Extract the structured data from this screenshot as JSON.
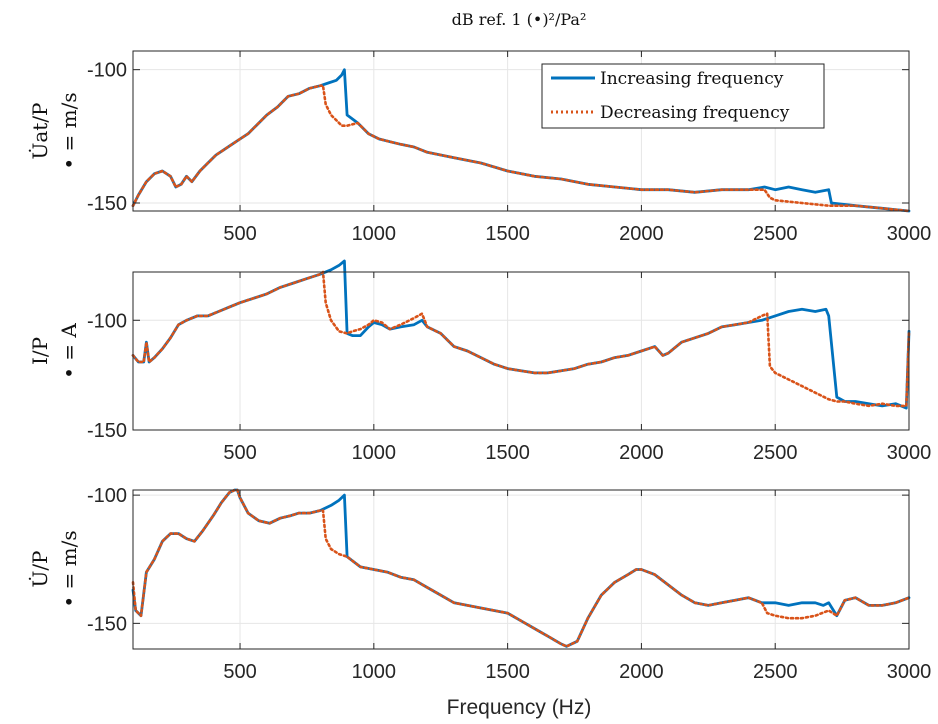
{
  "title": "dB ref. 1 (•)²/Pa²",
  "xlabel": "Frequency (Hz)",
  "chart_data": [
    {
      "type": "line",
      "ylabel_top": "U̇at/P",
      "ylabel_bottom": "• = m/s",
      "xlim": [
        100,
        3000
      ],
      "ylim": [
        -153,
        -93
      ],
      "xticks": [
        500,
        1000,
        1500,
        2000,
        2500,
        3000
      ],
      "yticks": [
        -150,
        -100
      ],
      "ytick_labels": [
        "-150",
        "-100"
      ],
      "legend": [
        "Increasing frequency",
        "Decreasing frequency"
      ],
      "legend_position": "top-right",
      "series": [
        {
          "name": "Increasing frequency",
          "color": "#0072BD",
          "style": "solid",
          "x": [
            100,
            120,
            150,
            180,
            210,
            240,
            260,
            280,
            300,
            320,
            350,
            380,
            410,
            440,
            470,
            500,
            530,
            560,
            600,
            640,
            680,
            720,
            760,
            800,
            830,
            860,
            880,
            890,
            900,
            940,
            980,
            1020,
            1060,
            1100,
            1150,
            1200,
            1300,
            1400,
            1500,
            1600,
            1700,
            1800,
            1900,
            2000,
            2100,
            2200,
            2300,
            2400,
            2460,
            2500,
            2550,
            2600,
            2650,
            2700,
            2710,
            2800,
            2900,
            3000
          ],
          "y": [
            -151,
            -147,
            -142,
            -139,
            -138,
            -140,
            -144,
            -143,
            -140,
            -142,
            -138,
            -135,
            -132,
            -130,
            -128,
            -126,
            -124,
            -121,
            -117,
            -114,
            -110,
            -109,
            -107,
            -106,
            -105,
            -104,
            -102,
            -100,
            -117,
            -120,
            -124,
            -126,
            -127,
            -128,
            -129,
            -131,
            -133,
            -135,
            -138,
            -140,
            -141,
            -143,
            -144,
            -145,
            -145,
            -146,
            -145,
            -145,
            -144,
            -145,
            -144,
            -145,
            -146,
            -145,
            -150,
            -151,
            -152,
            -153
          ]
        },
        {
          "name": "Decreasing frequency",
          "color": "#D95319",
          "style": "dotted",
          "x": [
            100,
            120,
            150,
            180,
            210,
            240,
            260,
            280,
            300,
            320,
            350,
            380,
            410,
            440,
            470,
            500,
            530,
            560,
            600,
            640,
            680,
            720,
            760,
            800,
            810,
            820,
            840,
            860,
            880,
            900,
            940,
            980,
            1020,
            1060,
            1100,
            1150,
            1200,
            1300,
            1400,
            1500,
            1600,
            1700,
            1800,
            1900,
            2000,
            2100,
            2200,
            2300,
            2400,
            2460,
            2480,
            2500,
            2600,
            2700,
            2800,
            2900,
            3000
          ],
          "y": [
            -151,
            -147,
            -142,
            -139,
            -138,
            -140,
            -144,
            -143,
            -140,
            -142,
            -138,
            -135,
            -132,
            -130,
            -128,
            -126,
            -124,
            -121,
            -117,
            -114,
            -110,
            -109,
            -107,
            -106,
            -106,
            -113,
            -117,
            -119,
            -121,
            -121,
            -120,
            -124,
            -126,
            -127,
            -128,
            -129,
            -131,
            -133,
            -135,
            -138,
            -140,
            -141,
            -143,
            -144,
            -145,
            -145,
            -146,
            -145,
            -145,
            -145,
            -148,
            -149,
            -150,
            -151,
            -151,
            -152,
            -153
          ]
        }
      ]
    },
    {
      "type": "line",
      "ylabel_top": "I/P",
      "ylabel_bottom": "• = A",
      "xlim": [
        100,
        3000
      ],
      "ylim": [
        -150,
        -78
      ],
      "xticks": [
        500,
        1000,
        1500,
        2000,
        2500,
        3000
      ],
      "yticks": [
        -150,
        -100
      ],
      "ytick_labels": [
        "-150",
        "-100"
      ],
      "series": [
        {
          "name": "Increasing frequency",
          "color": "#0072BD",
          "style": "solid",
          "x": [
            100,
            120,
            140,
            150,
            160,
            180,
            210,
            240,
            270,
            300,
            340,
            380,
            420,
            460,
            500,
            550,
            600,
            650,
            700,
            750,
            800,
            840,
            870,
            890,
            900,
            920,
            950,
            980,
            1000,
            1030,
            1060,
            1100,
            1150,
            1180,
            1200,
            1250,
            1300,
            1350,
            1400,
            1450,
            1500,
            1550,
            1600,
            1650,
            1700,
            1750,
            1800,
            1850,
            1900,
            1950,
            2000,
            2050,
            2080,
            2100,
            2150,
            2200,
            2250,
            2300,
            2350,
            2400,
            2450,
            2500,
            2550,
            2600,
            2650,
            2690,
            2700,
            2730,
            2760,
            2800,
            2850,
            2900,
            2950,
            2990,
            3000
          ],
          "y": [
            -116,
            -119,
            -119,
            -110,
            -119,
            -117,
            -113,
            -108,
            -102,
            -100,
            -98,
            -98,
            -96,
            -94,
            -92,
            -90,
            -88,
            -85,
            -83,
            -81,
            -79,
            -77,
            -75,
            -73,
            -106,
            -107,
            -107,
            -103,
            -101,
            -102,
            -104,
            -103,
            -102,
            -100,
            -103,
            -106,
            -112,
            -114,
            -117,
            -120,
            -122,
            -123,
            -124,
            -124,
            -123,
            -122,
            -120,
            -119,
            -117,
            -116,
            -114,
            -112,
            -116,
            -115,
            -110,
            -108,
            -106,
            -103,
            -102,
            -101,
            -100,
            -98,
            -96,
            -95,
            -96,
            -95,
            -98,
            -135,
            -137,
            -137,
            -138,
            -139,
            -138,
            -140,
            -105
          ]
        },
        {
          "name": "Decreasing frequency",
          "color": "#D95319",
          "style": "dotted",
          "x": [
            100,
            120,
            140,
            150,
            160,
            180,
            210,
            240,
            270,
            300,
            340,
            380,
            420,
            460,
            500,
            550,
            600,
            650,
            700,
            750,
            800,
            810,
            820,
            840,
            870,
            900,
            920,
            950,
            980,
            1000,
            1030,
            1060,
            1100,
            1150,
            1180,
            1200,
            1250,
            1300,
            1350,
            1400,
            1450,
            1500,
            1550,
            1600,
            1650,
            1700,
            1750,
            1800,
            1850,
            1900,
            1950,
            2000,
            2050,
            2080,
            2100,
            2150,
            2200,
            2250,
            2300,
            2350,
            2400,
            2450,
            2470,
            2480,
            2500,
            2550,
            2600,
            2650,
            2700,
            2730,
            2760,
            2800,
            2850,
            2900,
            2950,
            2990,
            3000
          ],
          "y": [
            -116,
            -119,
            -119,
            -110,
            -119,
            -117,
            -113,
            -108,
            -102,
            -100,
            -98,
            -98,
            -96,
            -94,
            -92,
            -90,
            -88,
            -85,
            -83,
            -81,
            -79,
            -78,
            -92,
            -100,
            -105,
            -106,
            -105,
            -104,
            -102,
            -100,
            -101,
            -104,
            -102,
            -99,
            -97,
            -103,
            -106,
            -112,
            -114,
            -117,
            -120,
            -122,
            -123,
            -124,
            -124,
            -123,
            -122,
            -120,
            -119,
            -117,
            -116,
            -114,
            -112,
            -116,
            -115,
            -110,
            -108,
            -106,
            -103,
            -102,
            -101,
            -98,
            -97,
            -121,
            -124,
            -127,
            -130,
            -133,
            -136,
            -137,
            -137,
            -138,
            -139,
            -138,
            -139,
            -139,
            -105
          ]
        }
      ]
    },
    {
      "type": "line",
      "ylabel_top": "U̇/P",
      "ylabel_bottom": "• = m/s",
      "xlim": [
        100,
        3000
      ],
      "ylim": [
        -160,
        -98
      ],
      "xticks": [
        500,
        1000,
        1500,
        2000,
        2500,
        3000
      ],
      "yticks": [
        -150,
        -100
      ],
      "ytick_labels": [
        "-150",
        "-100"
      ],
      "series": [
        {
          "name": "Increasing frequency",
          "color": "#0072BD",
          "style": "solid",
          "x": [
            100,
            110,
            130,
            150,
            180,
            210,
            240,
            270,
            300,
            330,
            360,
            400,
            430,
            460,
            480,
            490,
            500,
            530,
            570,
            610,
            650,
            690,
            720,
            760,
            800,
            840,
            870,
            890,
            900,
            950,
            1000,
            1050,
            1100,
            1150,
            1200,
            1250,
            1300,
            1400,
            1500,
            1550,
            1600,
            1650,
            1700,
            1720,
            1760,
            1800,
            1850,
            1900,
            1950,
            1980,
            2000,
            2050,
            2100,
            2150,
            2200,
            2250,
            2300,
            2350,
            2400,
            2450,
            2500,
            2550,
            2600,
            2650,
            2680,
            2700,
            2730,
            2760,
            2800,
            2850,
            2900,
            2950,
            3000
          ],
          "y": [
            -137,
            -145,
            -147,
            -130,
            -125,
            -118,
            -115,
            -115,
            -117,
            -118,
            -114,
            -108,
            -103,
            -99,
            -98,
            -98,
            -101,
            -107,
            -110,
            -111,
            -109,
            -108,
            -107,
            -107,
            -106,
            -104,
            -102,
            -100,
            -124,
            -128,
            -129,
            -130,
            -132,
            -133,
            -136,
            -139,
            -142,
            -144,
            -146,
            -149,
            -152,
            -155,
            -158,
            -159,
            -157,
            -148,
            -139,
            -134,
            -131,
            -129,
            -129,
            -131,
            -135,
            -139,
            -142,
            -143,
            -142,
            -141,
            -140,
            -142,
            -142,
            -143,
            -142,
            -142,
            -143,
            -142,
            -147,
            -141,
            -140,
            -143,
            -143,
            -142,
            -140
          ]
        },
        {
          "name": "Decreasing frequency",
          "color": "#D95319",
          "style": "dotted",
          "x": [
            100,
            110,
            130,
            150,
            180,
            210,
            240,
            270,
            300,
            330,
            360,
            400,
            430,
            460,
            480,
            490,
            500,
            530,
            570,
            610,
            650,
            690,
            720,
            760,
            800,
            810,
            820,
            840,
            870,
            900,
            950,
            1000,
            1050,
            1100,
            1150,
            1200,
            1250,
            1300,
            1400,
            1500,
            1550,
            1600,
            1650,
            1700,
            1720,
            1760,
            1800,
            1850,
            1900,
            1950,
            1980,
            2000,
            2050,
            2100,
            2150,
            2200,
            2250,
            2300,
            2350,
            2400,
            2450,
            2470,
            2500,
            2550,
            2600,
            2650,
            2700,
            2730,
            2760,
            2800,
            2850,
            2900,
            2950,
            3000
          ],
          "y": [
            -134,
            -145,
            -147,
            -130,
            -125,
            -118,
            -115,
            -115,
            -117,
            -118,
            -114,
            -108,
            -103,
            -99,
            -98,
            -98,
            -101,
            -107,
            -110,
            -111,
            -109,
            -108,
            -107,
            -107,
            -106,
            -106,
            -117,
            -121,
            -123,
            -124,
            -128,
            -129,
            -130,
            -132,
            -133,
            -136,
            -139,
            -142,
            -144,
            -146,
            -149,
            -152,
            -155,
            -158,
            -159,
            -157,
            -148,
            -139,
            -134,
            -131,
            -129,
            -129,
            -131,
            -135,
            -139,
            -142,
            -143,
            -142,
            -141,
            -140,
            -142,
            -146,
            -147,
            -148,
            -148,
            -147,
            -145,
            -147,
            -141,
            -140,
            -143,
            -143,
            -142,
            -140
          ]
        }
      ]
    }
  ]
}
